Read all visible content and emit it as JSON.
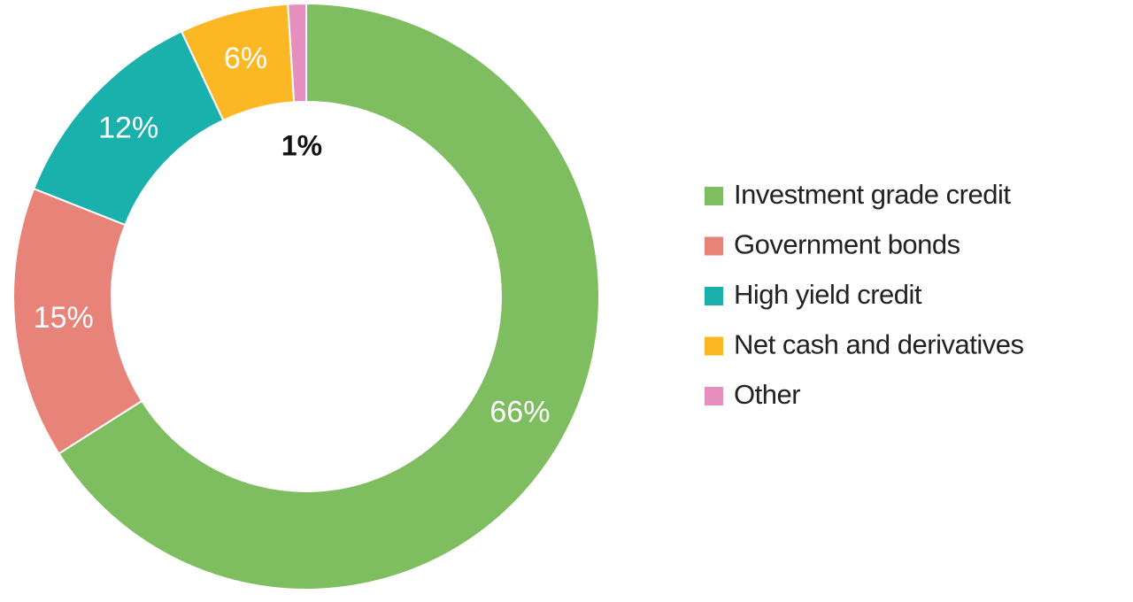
{
  "chart_data": {
    "type": "donut",
    "categories": [
      "Investment grade credit",
      "Government bonds",
      "High yield credit",
      "Net cash and derivatives",
      "Other"
    ],
    "values": [
      66,
      15,
      12,
      6,
      1
    ],
    "value_labels": [
      "66%",
      "15%",
      "12%",
      "6%",
      "1%"
    ],
    "colors": [
      "#7fbd61",
      "#e8837a",
      "#1ab0ac",
      "#fbb824",
      "#e68fbe"
    ],
    "legend": "right"
  }
}
